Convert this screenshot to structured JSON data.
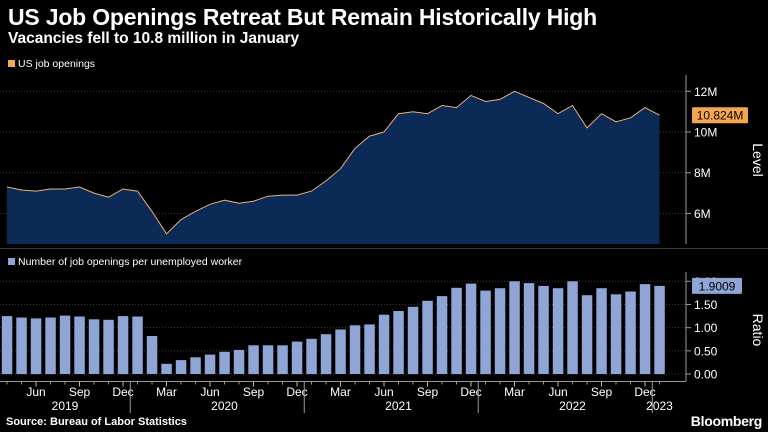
{
  "header": {
    "title": "US Job Openings Retreat But Remain Historically High",
    "subtitle": "Vacancies fell to 10.8 million in January"
  },
  "footer": {
    "source": "Source: Bureau of Labor Statistics",
    "brand": "Bloomberg"
  },
  "colors": {
    "background": "#000000",
    "area_fill": "#0b2a55",
    "area_line": "#e9b27c",
    "bar_fill": "#8ea5d6",
    "value_badge_top": "#f4a74e",
    "value_badge_bottom": "#8ea5d6"
  },
  "chart_data": [
    {
      "type": "area",
      "legend": "US job openings",
      "ylabel": "Level",
      "yticks": [
        6000000,
        8000000,
        10000000,
        12000000
      ],
      "ytick_labels": [
        "6M",
        "8M",
        "10M",
        "12M"
      ],
      "ylim": [
        4500000,
        12800000
      ],
      "last_value_label": "10.824M",
      "series": [
        {
          "name": "US job openings",
          "x": [
            "2019-04",
            "2019-05",
            "2019-06",
            "2019-07",
            "2019-08",
            "2019-09",
            "2019-10",
            "2019-11",
            "2019-12",
            "2020-01",
            "2020-02",
            "2020-03",
            "2020-04",
            "2020-05",
            "2020-06",
            "2020-07",
            "2020-08",
            "2020-09",
            "2020-10",
            "2020-11",
            "2020-12",
            "2021-01",
            "2021-02",
            "2021-03",
            "2021-04",
            "2021-05",
            "2021-06",
            "2021-07",
            "2021-08",
            "2021-09",
            "2021-10",
            "2021-11",
            "2021-12",
            "2022-01",
            "2022-02",
            "2022-03",
            "2022-04",
            "2022-05",
            "2022-06",
            "2022-07",
            "2022-08",
            "2022-09",
            "2022-10",
            "2022-11",
            "2022-12",
            "2023-01"
          ],
          "values": [
            7300000,
            7150000,
            7100000,
            7200000,
            7200000,
            7300000,
            7000000,
            6800000,
            7200000,
            7100000,
            6100000,
            5000000,
            5700000,
            6100000,
            6450000,
            6650000,
            6500000,
            6600000,
            6850000,
            6900000,
            6900000,
            7100000,
            7600000,
            8200000,
            9200000,
            9800000,
            10000000,
            10900000,
            11000000,
            10900000,
            11300000,
            11200000,
            11800000,
            11500000,
            11600000,
            12000000,
            11700000,
            11400000,
            10900000,
            11300000,
            10200000,
            10900000,
            10500000,
            10700000,
            11200000,
            10824000
          ]
        }
      ]
    },
    {
      "type": "bar",
      "legend": "Number of job openings per unemployed worker",
      "ylabel": "Ratio",
      "yticks": [
        0,
        0.5,
        1.0,
        1.5,
        2.0
      ],
      "ytick_labels": [
        "0.00",
        "0.50",
        "1.00",
        "1.50",
        "2.00"
      ],
      "ylim": [
        -0.15,
        2.2
      ],
      "last_value_label": "1.9009",
      "series": [
        {
          "name": "Number of job openings per unemployed worker",
          "x": [
            "2019-04",
            "2019-05",
            "2019-06",
            "2019-07",
            "2019-08",
            "2019-09",
            "2019-10",
            "2019-11",
            "2019-12",
            "2020-01",
            "2020-02",
            "2020-03",
            "2020-04",
            "2020-05",
            "2020-06",
            "2020-07",
            "2020-08",
            "2020-09",
            "2020-10",
            "2020-11",
            "2020-12",
            "2021-01",
            "2021-02",
            "2021-03",
            "2021-04",
            "2021-05",
            "2021-06",
            "2021-07",
            "2021-08",
            "2021-09",
            "2021-10",
            "2021-11",
            "2021-12",
            "2022-01",
            "2022-02",
            "2022-03",
            "2022-04",
            "2022-05",
            "2022-06",
            "2022-07",
            "2022-08",
            "2022-09",
            "2022-10",
            "2022-11",
            "2022-12",
            "2023-01"
          ],
          "values": [
            1.25,
            1.22,
            1.2,
            1.22,
            1.26,
            1.24,
            1.18,
            1.17,
            1.25,
            1.24,
            0.82,
            0.22,
            0.3,
            0.36,
            0.42,
            0.48,
            0.52,
            0.62,
            0.62,
            0.62,
            0.7,
            0.76,
            0.86,
            0.96,
            1.05,
            1.07,
            1.28,
            1.36,
            1.45,
            1.58,
            1.68,
            1.86,
            1.95,
            1.8,
            1.85,
            2.0,
            1.96,
            1.9,
            1.85,
            2.0,
            1.7,
            1.85,
            1.72,
            1.78,
            1.94,
            1.9009
          ]
        }
      ]
    }
  ],
  "x_axis": {
    "month_ticks": [
      {
        "x": "2019-06",
        "label": "Jun"
      },
      {
        "x": "2019-09",
        "label": "Sep"
      },
      {
        "x": "2019-12",
        "label": "Dec"
      },
      {
        "x": "2020-03",
        "label": "Mar"
      },
      {
        "x": "2020-06",
        "label": "Jun"
      },
      {
        "x": "2020-09",
        "label": "Sep"
      },
      {
        "x": "2020-12",
        "label": "Dec"
      },
      {
        "x": "2021-03",
        "label": "Mar"
      },
      {
        "x": "2021-06",
        "label": "Jun"
      },
      {
        "x": "2021-09",
        "label": "Sep"
      },
      {
        "x": "2021-12",
        "label": "Dec"
      },
      {
        "x": "2022-03",
        "label": "Mar"
      },
      {
        "x": "2022-06",
        "label": "Jun"
      },
      {
        "x": "2022-09",
        "label": "Sep"
      },
      {
        "x": "2022-12",
        "label": "Dec"
      }
    ],
    "year_labels": [
      {
        "x": "2019-08",
        "label": "2019"
      },
      {
        "x": "2020-07",
        "label": "2020"
      },
      {
        "x": "2021-07",
        "label": "2021"
      },
      {
        "x": "2022-07",
        "label": "2022"
      },
      {
        "x": "2023-01",
        "label": "2023"
      }
    ],
    "year_boundaries": [
      "2019-12",
      "2020-12",
      "2021-12",
      "2022-12"
    ]
  }
}
